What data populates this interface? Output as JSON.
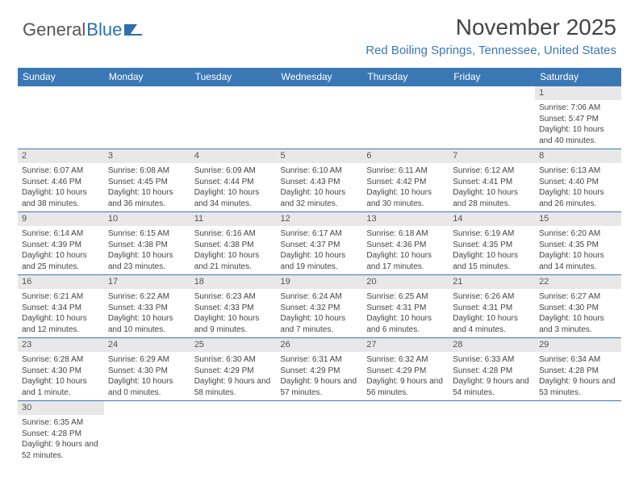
{
  "logo": {
    "part1": "General",
    "part2": "Blue"
  },
  "title": "November 2025",
  "location": "Red Boiling Springs, Tennessee, United States",
  "colors": {
    "header_bg": "#3a78b5",
    "header_text": "#ffffff",
    "daynum_bg": "#e8e8e8",
    "border": "#3a78b5",
    "location_text": "#3a78b5"
  },
  "weekdays": [
    "Sunday",
    "Monday",
    "Tuesday",
    "Wednesday",
    "Thursday",
    "Friday",
    "Saturday"
  ],
  "weeks": [
    [
      null,
      null,
      null,
      null,
      null,
      null,
      {
        "n": "1",
        "sr": "Sunrise: 7:06 AM",
        "ss": "Sunset: 5:47 PM",
        "dl": "Daylight: 10 hours and 40 minutes."
      }
    ],
    [
      {
        "n": "2",
        "sr": "Sunrise: 6:07 AM",
        "ss": "Sunset: 4:46 PM",
        "dl": "Daylight: 10 hours and 38 minutes."
      },
      {
        "n": "3",
        "sr": "Sunrise: 6:08 AM",
        "ss": "Sunset: 4:45 PM",
        "dl": "Daylight: 10 hours and 36 minutes."
      },
      {
        "n": "4",
        "sr": "Sunrise: 6:09 AM",
        "ss": "Sunset: 4:44 PM",
        "dl": "Daylight: 10 hours and 34 minutes."
      },
      {
        "n": "5",
        "sr": "Sunrise: 6:10 AM",
        "ss": "Sunset: 4:43 PM",
        "dl": "Daylight: 10 hours and 32 minutes."
      },
      {
        "n": "6",
        "sr": "Sunrise: 6:11 AM",
        "ss": "Sunset: 4:42 PM",
        "dl": "Daylight: 10 hours and 30 minutes."
      },
      {
        "n": "7",
        "sr": "Sunrise: 6:12 AM",
        "ss": "Sunset: 4:41 PM",
        "dl": "Daylight: 10 hours and 28 minutes."
      },
      {
        "n": "8",
        "sr": "Sunrise: 6:13 AM",
        "ss": "Sunset: 4:40 PM",
        "dl": "Daylight: 10 hours and 26 minutes."
      }
    ],
    [
      {
        "n": "9",
        "sr": "Sunrise: 6:14 AM",
        "ss": "Sunset: 4:39 PM",
        "dl": "Daylight: 10 hours and 25 minutes."
      },
      {
        "n": "10",
        "sr": "Sunrise: 6:15 AM",
        "ss": "Sunset: 4:38 PM",
        "dl": "Daylight: 10 hours and 23 minutes."
      },
      {
        "n": "11",
        "sr": "Sunrise: 6:16 AM",
        "ss": "Sunset: 4:38 PM",
        "dl": "Daylight: 10 hours and 21 minutes."
      },
      {
        "n": "12",
        "sr": "Sunrise: 6:17 AM",
        "ss": "Sunset: 4:37 PM",
        "dl": "Daylight: 10 hours and 19 minutes."
      },
      {
        "n": "13",
        "sr": "Sunrise: 6:18 AM",
        "ss": "Sunset: 4:36 PM",
        "dl": "Daylight: 10 hours and 17 minutes."
      },
      {
        "n": "14",
        "sr": "Sunrise: 6:19 AM",
        "ss": "Sunset: 4:35 PM",
        "dl": "Daylight: 10 hours and 15 minutes."
      },
      {
        "n": "15",
        "sr": "Sunrise: 6:20 AM",
        "ss": "Sunset: 4:35 PM",
        "dl": "Daylight: 10 hours and 14 minutes."
      }
    ],
    [
      {
        "n": "16",
        "sr": "Sunrise: 6:21 AM",
        "ss": "Sunset: 4:34 PM",
        "dl": "Daylight: 10 hours and 12 minutes."
      },
      {
        "n": "17",
        "sr": "Sunrise: 6:22 AM",
        "ss": "Sunset: 4:33 PM",
        "dl": "Daylight: 10 hours and 10 minutes."
      },
      {
        "n": "18",
        "sr": "Sunrise: 6:23 AM",
        "ss": "Sunset: 4:33 PM",
        "dl": "Daylight: 10 hours and 9 minutes."
      },
      {
        "n": "19",
        "sr": "Sunrise: 6:24 AM",
        "ss": "Sunset: 4:32 PM",
        "dl": "Daylight: 10 hours and 7 minutes."
      },
      {
        "n": "20",
        "sr": "Sunrise: 6:25 AM",
        "ss": "Sunset: 4:31 PM",
        "dl": "Daylight: 10 hours and 6 minutes."
      },
      {
        "n": "21",
        "sr": "Sunrise: 6:26 AM",
        "ss": "Sunset: 4:31 PM",
        "dl": "Daylight: 10 hours and 4 minutes."
      },
      {
        "n": "22",
        "sr": "Sunrise: 6:27 AM",
        "ss": "Sunset: 4:30 PM",
        "dl": "Daylight: 10 hours and 3 minutes."
      }
    ],
    [
      {
        "n": "23",
        "sr": "Sunrise: 6:28 AM",
        "ss": "Sunset: 4:30 PM",
        "dl": "Daylight: 10 hours and 1 minute."
      },
      {
        "n": "24",
        "sr": "Sunrise: 6:29 AM",
        "ss": "Sunset: 4:30 PM",
        "dl": "Daylight: 10 hours and 0 minutes."
      },
      {
        "n": "25",
        "sr": "Sunrise: 6:30 AM",
        "ss": "Sunset: 4:29 PM",
        "dl": "Daylight: 9 hours and 58 minutes."
      },
      {
        "n": "26",
        "sr": "Sunrise: 6:31 AM",
        "ss": "Sunset: 4:29 PM",
        "dl": "Daylight: 9 hours and 57 minutes."
      },
      {
        "n": "27",
        "sr": "Sunrise: 6:32 AM",
        "ss": "Sunset: 4:29 PM",
        "dl": "Daylight: 9 hours and 56 minutes."
      },
      {
        "n": "28",
        "sr": "Sunrise: 6:33 AM",
        "ss": "Sunset: 4:28 PM",
        "dl": "Daylight: 9 hours and 54 minutes."
      },
      {
        "n": "29",
        "sr": "Sunrise: 6:34 AM",
        "ss": "Sunset: 4:28 PM",
        "dl": "Daylight: 9 hours and 53 minutes."
      }
    ],
    [
      {
        "n": "30",
        "sr": "Sunrise: 6:35 AM",
        "ss": "Sunset: 4:28 PM",
        "dl": "Daylight: 9 hours and 52 minutes."
      },
      null,
      null,
      null,
      null,
      null,
      null
    ]
  ]
}
